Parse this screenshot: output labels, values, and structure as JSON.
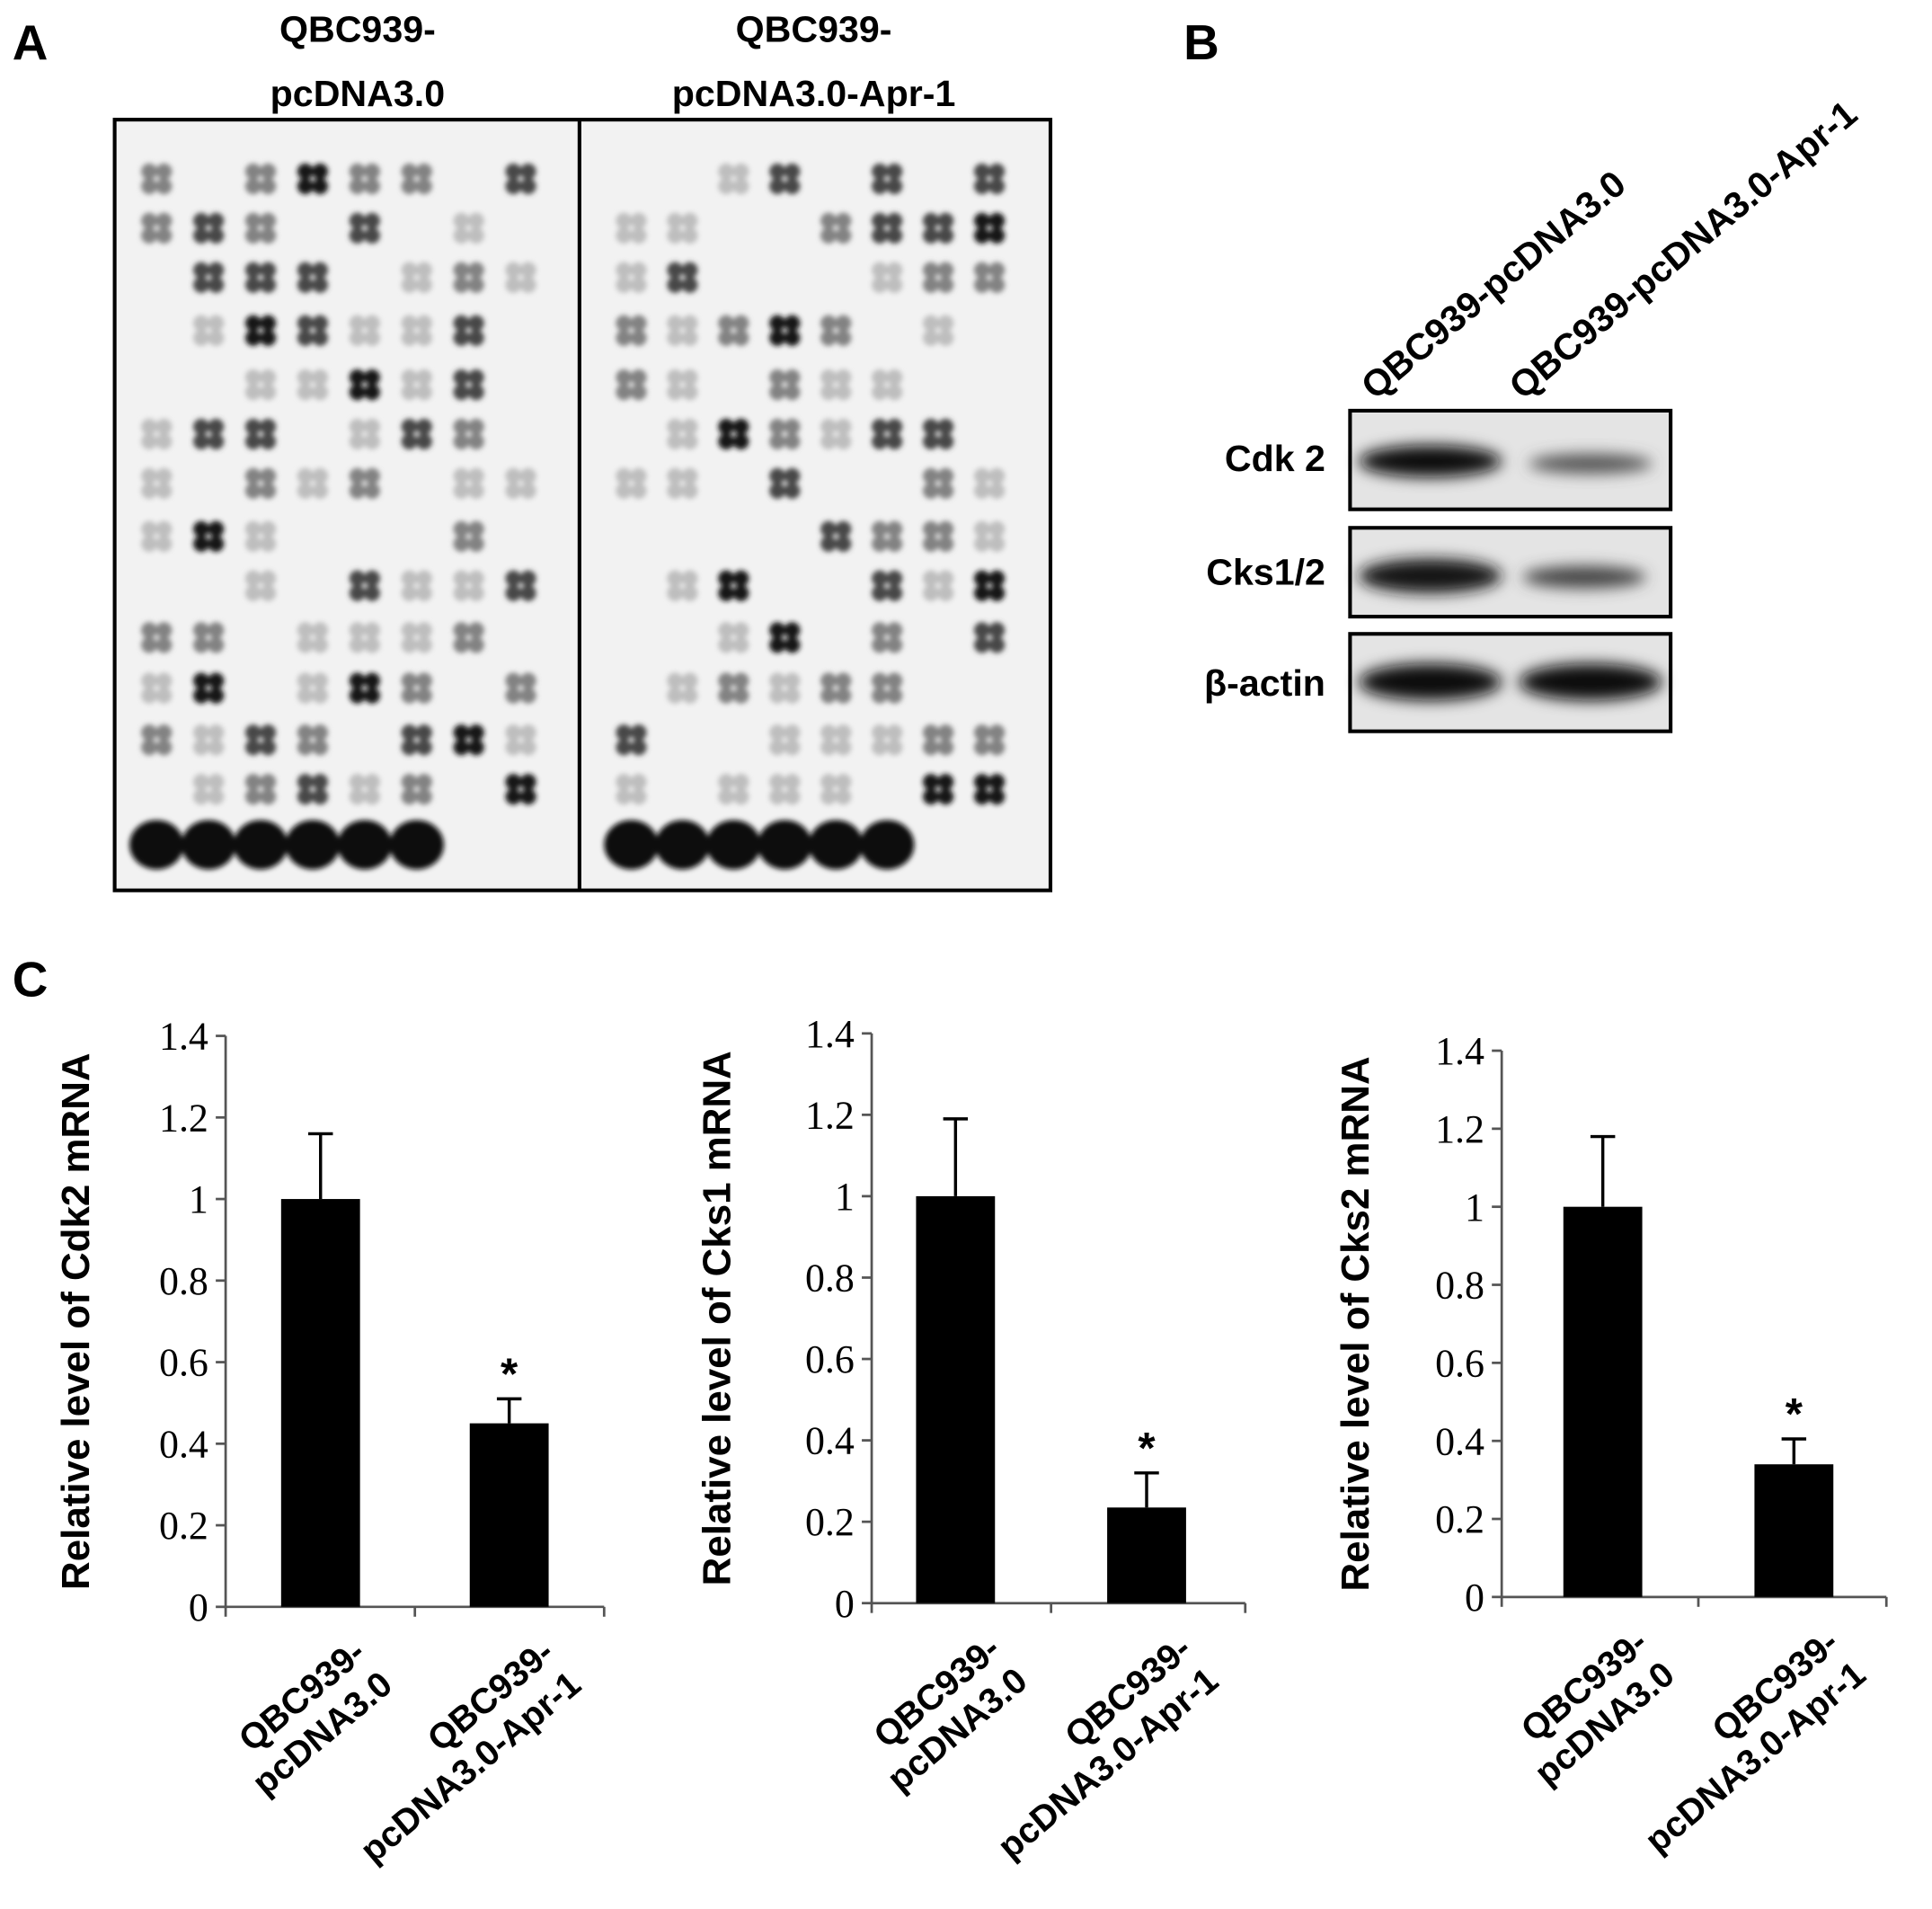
{
  "panel_a": {
    "letter": "A",
    "columns": [
      [
        "QBC939-",
        "pcDNA3.0"
      ],
      [
        "QBC939-",
        "pcDNA3.0-Apr-1"
      ]
    ]
  },
  "panel_b": {
    "letter": "B",
    "lanes": [
      "QBC939-pcDNA3.0",
      "QBC939-pcDNA3.0-Apr-1"
    ],
    "rows": [
      "Cdk 2",
      "Cks1/2",
      "β-actin"
    ]
  },
  "panel_c": {
    "letter": "C"
  },
  "chart_data": [
    {
      "type": "bar",
      "ylabel": "Relative level of Cdk2 mRNA",
      "categories": [
        [
          "QBC939-",
          "pcDNA3.0"
        ],
        [
          "QBC939-",
          "pcDNA3.0-Apr-1"
        ]
      ],
      "values": [
        1,
        0.45
      ],
      "errors": [
        0.16,
        0.06
      ],
      "value_annotations": [
        null,
        "*"
      ],
      "color": "#000000",
      "ylim": [
        0,
        1.4
      ],
      "yticks": [
        0,
        0.2,
        0.4,
        0.6,
        0.8,
        1,
        1.2,
        1.4
      ]
    },
    {
      "type": "bar",
      "ylabel": "Relative level of Cks1 mRNA",
      "categories": [
        [
          "QBC939-",
          "pcDNA3.0"
        ],
        [
          "QBC939-",
          "pcDNA3.0-Apr-1"
        ]
      ],
      "values": [
        1,
        0.235
      ],
      "errors": [
        0.19,
        0.085
      ],
      "value_annotations": [
        null,
        "*"
      ],
      "color": "#000000",
      "ylim": [
        0,
        1.4
      ],
      "yticks": [
        0,
        0.2,
        0.4,
        0.6,
        0.8,
        1,
        1.2,
        1.4
      ]
    },
    {
      "type": "bar",
      "ylabel": "Relative level of Cks2 mRNA",
      "categories": [
        [
          "QBC939-",
          "pcDNA3.0"
        ],
        [
          "QBC939-",
          "pcDNA3.0-Apr-1"
        ]
      ],
      "values": [
        1,
        0.34
      ],
      "errors": [
        0.18,
        0.065
      ],
      "value_annotations": [
        null,
        "*"
      ],
      "color": "#000000",
      "ylim": [
        0,
        1.4
      ],
      "yticks": [
        0,
        0.2,
        0.4,
        0.6,
        0.8,
        1,
        1.2,
        1.4
      ]
    }
  ]
}
